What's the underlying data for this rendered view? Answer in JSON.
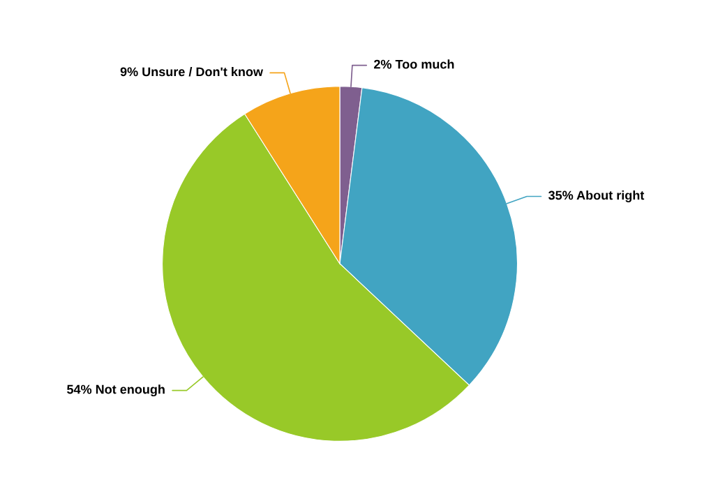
{
  "chart_data": {
    "type": "pie",
    "categories": [
      "Too much",
      "About right",
      "Not enough",
      "Unsure / Don't know"
    ],
    "values": [
      2,
      35,
      54,
      9
    ],
    "value_labels": [
      "2%",
      "35%",
      "54%",
      "9%"
    ],
    "colors": [
      "#7f5f8f",
      "#41a4c2",
      "#98c928",
      "#f5a41a"
    ],
    "legend": false
  }
}
